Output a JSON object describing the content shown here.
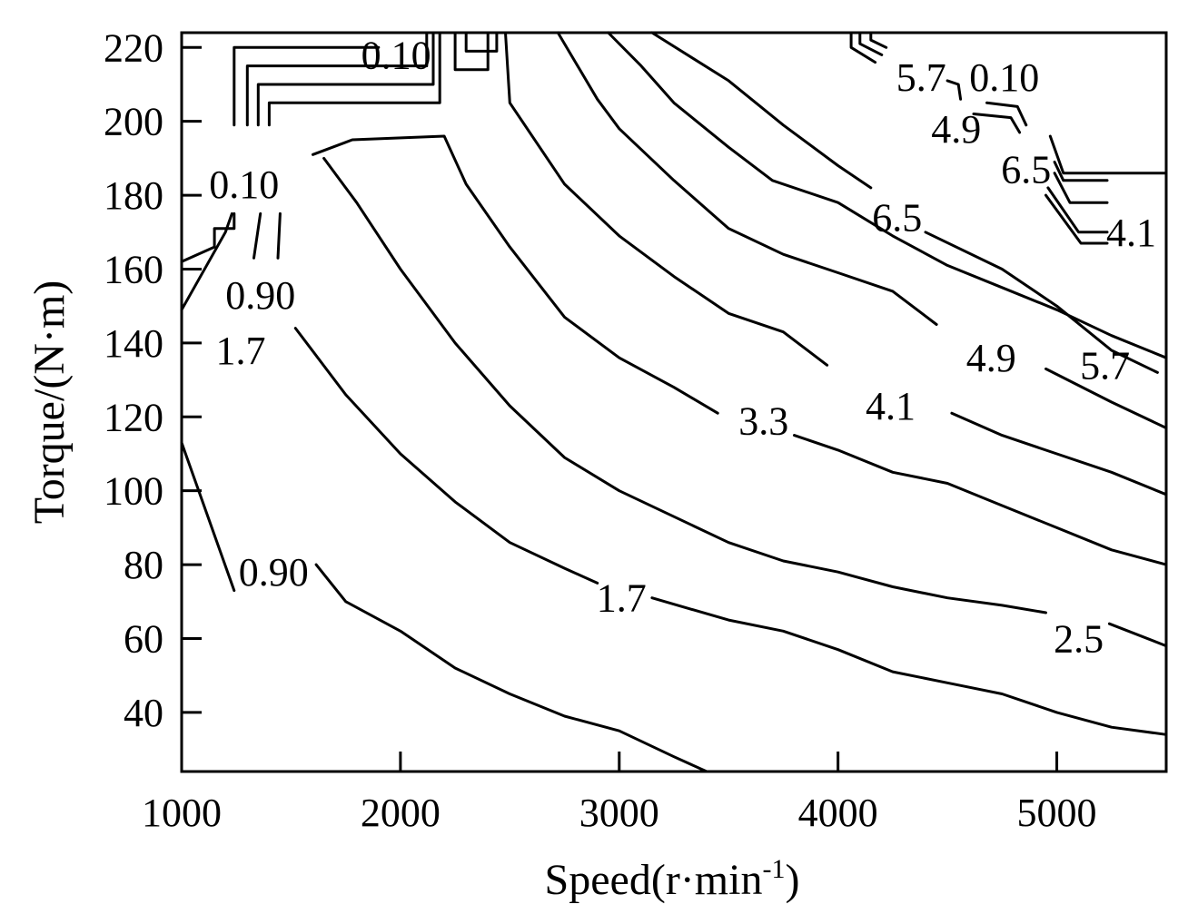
{
  "chart_data": {
    "type": "contour",
    "title": "",
    "xlabel": "Speed(r·min",
    "xlabel_sup": "-1",
    "xlabel_close": ")",
    "ylabel": "Torque/(N·m)",
    "xlim": [
      1000,
      5500
    ],
    "ylim": [
      24,
      224
    ],
    "xticks": [
      1000,
      2000,
      3000,
      4000,
      5000
    ],
    "yticks": [
      40,
      60,
      80,
      100,
      120,
      140,
      160,
      180,
      200,
      220
    ],
    "colors": {
      "line": "#000000",
      "background": "#ffffff"
    },
    "contours": [
      {
        "level": "0.90",
        "points": [
          [
            1000,
            113
          ],
          [
            1150,
            88
          ],
          [
            1240,
            73
          ]
        ]
      },
      {
        "level": "0.90",
        "points": [
          [
            1615,
            80
          ],
          [
            1750,
            70
          ],
          [
            2000,
            62
          ],
          [
            2250,
            52
          ],
          [
            2500,
            45
          ],
          [
            2750,
            39
          ],
          [
            3000,
            35
          ],
          [
            3250,
            28
          ],
          [
            3400,
            24
          ]
        ]
      },
      {
        "level": "1.7",
        "points": [
          [
            1520,
            144
          ],
          [
            1750,
            126
          ],
          [
            2000,
            110
          ],
          [
            2250,
            97
          ],
          [
            2500,
            86
          ],
          [
            2750,
            79
          ],
          [
            2900,
            75
          ]
        ]
      },
      {
        "level": "1.7",
        "points": [
          [
            3150,
            71
          ],
          [
            3500,
            65
          ],
          [
            3750,
            62
          ],
          [
            4000,
            57
          ],
          [
            4250,
            51
          ],
          [
            4500,
            48
          ],
          [
            4750,
            45
          ],
          [
            5000,
            40
          ],
          [
            5250,
            36
          ],
          [
            5500,
            34
          ]
        ]
      },
      {
        "level": "2.5",
        "points": [
          [
            1650,
            190
          ],
          [
            1800,
            178
          ],
          [
            2000,
            160
          ],
          [
            2250,
            140
          ],
          [
            2500,
            123
          ],
          [
            2750,
            109
          ],
          [
            3000,
            100
          ],
          [
            3250,
            93
          ],
          [
            3500,
            86
          ],
          [
            3750,
            81
          ],
          [
            4000,
            78
          ],
          [
            4250,
            74
          ],
          [
            4500,
            71
          ],
          [
            4750,
            69
          ],
          [
            4950,
            67
          ]
        ]
      },
      {
        "level": "2.5",
        "points": [
          [
            5240,
            64
          ],
          [
            5500,
            58
          ]
        ]
      },
      {
        "level": "3.3",
        "points": [
          [
            1600,
            191
          ],
          [
            1780,
            195
          ],
          [
            2200,
            196
          ],
          [
            2300,
            183
          ],
          [
            2500,
            166
          ],
          [
            2750,
            147
          ],
          [
            3000,
            136
          ],
          [
            3250,
            128
          ],
          [
            3450,
            121
          ]
        ]
      },
      {
        "level": "3.3",
        "points": [
          [
            3800,
            115
          ],
          [
            4000,
            111
          ],
          [
            4250,
            105
          ],
          [
            4500,
            102
          ],
          [
            4750,
            96
          ],
          [
            5000,
            90
          ],
          [
            5250,
            84
          ],
          [
            5500,
            80
          ]
        ]
      },
      {
        "level": "4.1",
        "points": [
          [
            2480,
            224
          ],
          [
            2500,
            205
          ],
          [
            2750,
            183
          ],
          [
            3000,
            169
          ],
          [
            3250,
            158
          ],
          [
            3500,
            148
          ],
          [
            3750,
            143
          ],
          [
            3950,
            134
          ]
        ]
      },
      {
        "level": "4.1",
        "points": [
          [
            4520,
            121
          ],
          [
            4750,
            115
          ],
          [
            5000,
            110
          ],
          [
            5250,
            105
          ],
          [
            5500,
            99
          ]
        ]
      },
      {
        "level": "4.9",
        "points": [
          [
            2720,
            224
          ],
          [
            2900,
            206
          ],
          [
            3000,
            198
          ],
          [
            3250,
            184
          ],
          [
            3500,
            171
          ],
          [
            3750,
            164
          ],
          [
            4000,
            159
          ],
          [
            4250,
            154
          ],
          [
            4450,
            145
          ]
        ]
      },
      {
        "level": "4.9",
        "points": [
          [
            4950,
            133
          ],
          [
            5250,
            124
          ],
          [
            5500,
            117
          ]
        ]
      },
      {
        "level": "5.7",
        "points": [
          [
            2950,
            224
          ],
          [
            3100,
            215
          ],
          [
            3250,
            205
          ],
          [
            3500,
            193
          ],
          [
            3700,
            184
          ],
          [
            4000,
            178
          ],
          [
            4250,
            169
          ],
          [
            4500,
            161
          ],
          [
            4750,
            155
          ],
          [
            5000,
            149
          ],
          [
            5250,
            142
          ],
          [
            5500,
            136
          ]
        ]
      },
      {
        "level": "6.5",
        "points": [
          [
            3150,
            224
          ],
          [
            3500,
            211
          ],
          [
            3750,
            199
          ],
          [
            4000,
            188
          ],
          [
            4150,
            182
          ]
        ]
      },
      {
        "level": "6.5",
        "points": [
          [
            4400,
            170
          ],
          [
            4750,
            160
          ],
          [
            5000,
            150
          ],
          [
            5250,
            138
          ],
          [
            5460,
            132
          ]
        ]
      },
      {
        "level": "0.10",
        "points": [
          [
            1240,
            199
          ],
          [
            1240,
            220
          ],
          [
            1900,
            220
          ]
        ]
      },
      {
        "level": "0.10",
        "points": [
          [
            1300,
            199
          ],
          [
            1300,
            215
          ],
          [
            2120,
            215
          ],
          [
            2120,
            224
          ]
        ]
      },
      {
        "level": "0.10",
        "points": [
          [
            1350,
            199
          ],
          [
            1350,
            210
          ],
          [
            2150,
            210
          ],
          [
            2150,
            224
          ]
        ]
      },
      {
        "level": "0.10",
        "points": [
          [
            1400,
            199
          ],
          [
            1400,
            205
          ],
          [
            2180,
            205
          ],
          [
            2180,
            224
          ]
        ]
      },
      {
        "level": "0.10",
        "points": [
          [
            2250,
            224
          ],
          [
            2250,
            214
          ],
          [
            2400,
            214
          ],
          [
            2400,
            224
          ]
        ]
      },
      {
        "level": "0.10",
        "points": [
          [
            2300,
            224
          ],
          [
            2300,
            219
          ],
          [
            2440,
            219
          ],
          [
            2440,
            224
          ]
        ]
      },
      {
        "level": "0.10",
        "points": [
          [
            1000,
            162
          ],
          [
            1150,
            166
          ],
          [
            1150,
            171
          ],
          [
            1240,
            171
          ],
          [
            1240,
            175
          ]
        ]
      },
      {
        "level": "0.10",
        "points": [
          [
            1000,
            149
          ],
          [
            1200,
            170
          ],
          [
            1230,
            175
          ]
        ]
      },
      {
        "level": "0.10",
        "points": [
          [
            1330,
            163
          ],
          [
            1360,
            175
          ]
        ]
      },
      {
        "level": "0.10",
        "points": [
          [
            1440,
            163
          ],
          [
            1450,
            175
          ]
        ]
      },
      {
        "level": "0.10",
        "points": [
          [
            4060,
            224
          ],
          [
            4060,
            220
          ],
          [
            4170,
            216
          ]
        ]
      },
      {
        "level": "0.10",
        "points": [
          [
            4100,
            224
          ],
          [
            4100,
            221
          ],
          [
            4200,
            218
          ]
        ]
      },
      {
        "level": "0.10",
        "points": [
          [
            4150,
            224
          ],
          [
            4150,
            222
          ],
          [
            4220,
            220
          ]
        ]
      },
      {
        "level": "0.10",
        "points": [
          [
            4500,
            211
          ],
          [
            4550,
            210
          ],
          [
            4560,
            206
          ]
        ]
      },
      {
        "level": "0.10",
        "points": [
          [
            4620,
            202
          ],
          [
            4790,
            201
          ],
          [
            4830,
            197
          ]
        ]
      },
      {
        "level": "0.10",
        "points": [
          [
            4680,
            205
          ],
          [
            4820,
            204
          ],
          [
            4860,
            199
          ]
        ]
      },
      {
        "level": "0.10",
        "points": [
          [
            4970,
            196
          ],
          [
            5030,
            186
          ],
          [
            5500,
            186
          ]
        ]
      },
      {
        "level": "0.10",
        "points": [
          [
            4990,
            189
          ],
          [
            5030,
            184
          ],
          [
            5230,
            184
          ]
        ]
      },
      {
        "level": "0.10",
        "points": [
          [
            4990,
            186
          ],
          [
            5060,
            178
          ],
          [
            5230,
            178
          ]
        ]
      },
      {
        "level": "0.10",
        "points": [
          [
            4960,
            182
          ],
          [
            5100,
            170
          ],
          [
            5230,
            170
          ]
        ]
      },
      {
        "level": "0.10",
        "points": [
          [
            4950,
            180
          ],
          [
            5110,
            167
          ],
          [
            5230,
            167
          ]
        ]
      }
    ],
    "labels": [
      {
        "text": "0.10",
        "x": 1980,
        "y": 218
      },
      {
        "text": "0.10",
        "x": 1285,
        "y": 183
      },
      {
        "text": "0.90",
        "x": 1360,
        "y": 153
      },
      {
        "text": "1.7",
        "x": 1270,
        "y": 138
      },
      {
        "text": "0.90",
        "x": 1420,
        "y": 78
      },
      {
        "text": "1.7",
        "x": 3010,
        "y": 71
      },
      {
        "text": "3.3",
        "x": 3660,
        "y": 119
      },
      {
        "text": "4.1",
        "x": 4240,
        "y": 123
      },
      {
        "text": "4.9",
        "x": 4700,
        "y": 136
      },
      {
        "text": "5.7",
        "x": 5220,
        "y": 134
      },
      {
        "text": "6.5",
        "x": 4270,
        "y": 174
      },
      {
        "text": "2.5",
        "x": 5100,
        "y": 60
      },
      {
        "text": "5.7",
        "x": 4380,
        "y": 212
      },
      {
        "text": "0.10",
        "x": 4760,
        "y": 212
      },
      {
        "text": "4.9",
        "x": 4540,
        "y": 198
      },
      {
        "text": "6.5",
        "x": 4860,
        "y": 187
      },
      {
        "text": "4.1",
        "x": 5340,
        "y": 170
      }
    ]
  }
}
